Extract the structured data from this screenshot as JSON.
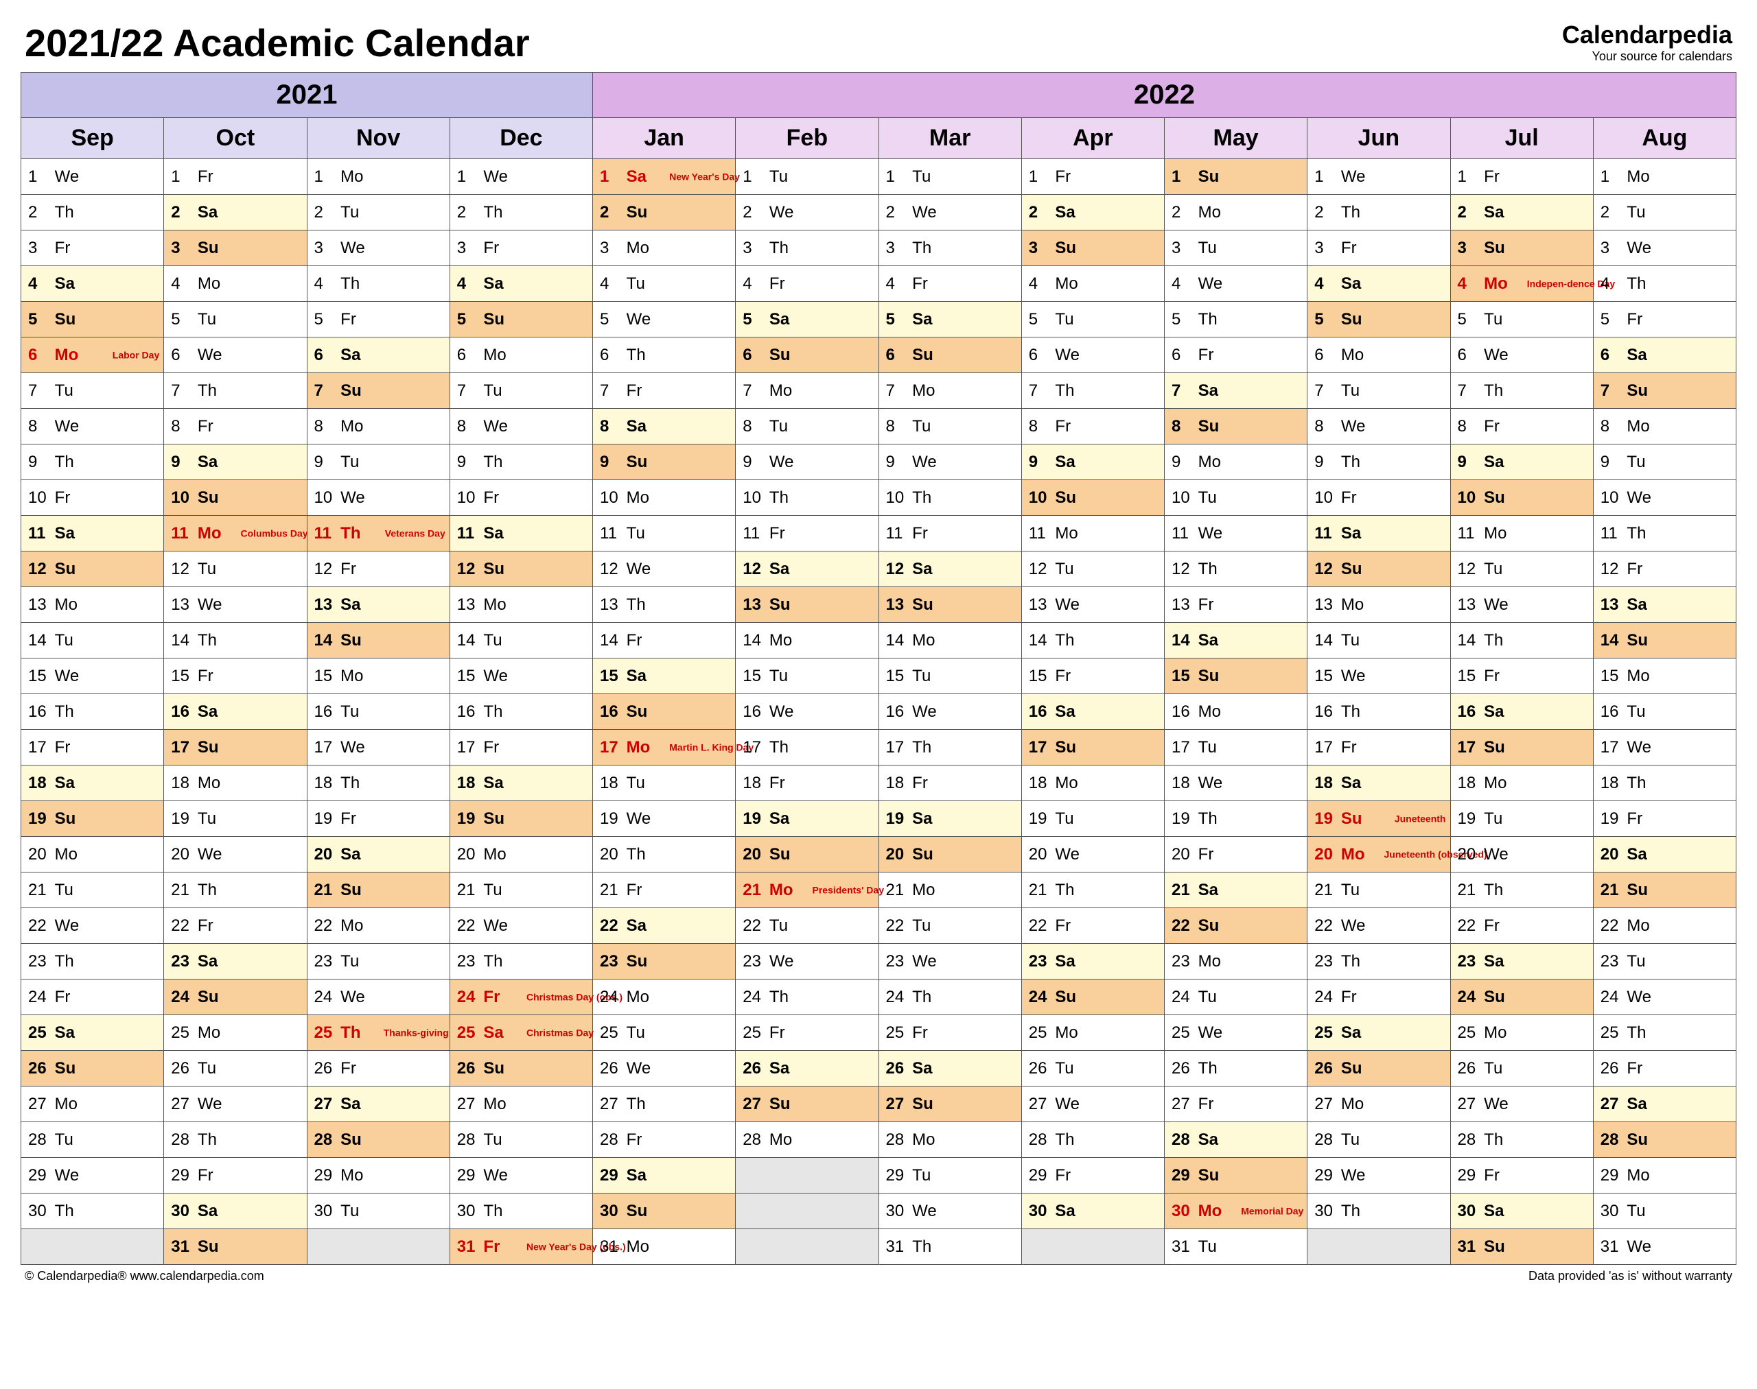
{
  "title": "2021/22 Academic Calendar",
  "brand": {
    "name": "Calendarpedia",
    "sub": "Your source for calendars"
  },
  "footer_left": "© Calendarpedia®   www.calendarpedia.com",
  "footer_right": "Data provided 'as is' without warranty",
  "colors": {
    "year2021_bg": "#c5c0ea",
    "year2022_bg": "#dcb0e6",
    "month2021_bg": "#dedaf4",
    "month2022_bg": "#eed7f3",
    "sat_bg": "#fef9d6",
    "sun_bg": "#f9cf9c",
    "holiday_bg": "#f9cf9c",
    "holiday_text": "#cc0000",
    "blank_bg": "#e6e6e6",
    "border": "#555555",
    "title_fontsize_pt": 42,
    "year_fontsize_pt": 30,
    "month_fontsize_pt": 26,
    "day_fontsize_pt": 18,
    "holiday_label_fontsize_pt": 11
  },
  "year_groups": [
    {
      "label": "2021",
      "span": 4,
      "class": "year-2021",
      "mclass": "mon-2021"
    },
    {
      "label": "2022",
      "span": 8,
      "class": "year-2022",
      "mclass": "mon-2022"
    }
  ],
  "months": [
    {
      "abbr": "Sep",
      "year": 2021,
      "days": 30,
      "start": 3
    },
    {
      "abbr": "Oct",
      "year": 2021,
      "days": 31,
      "start": 5
    },
    {
      "abbr": "Nov",
      "year": 2021,
      "days": 30,
      "start": 1
    },
    {
      "abbr": "Dec",
      "year": 2021,
      "days": 31,
      "start": 3
    },
    {
      "abbr": "Jan",
      "year": 2022,
      "days": 31,
      "start": 6
    },
    {
      "abbr": "Feb",
      "year": 2022,
      "days": 28,
      "start": 2
    },
    {
      "abbr": "Mar",
      "year": 2022,
      "days": 31,
      "start": 2
    },
    {
      "abbr": "Apr",
      "year": 2022,
      "days": 30,
      "start": 5
    },
    {
      "abbr": "May",
      "year": 2022,
      "days": 31,
      "start": 0
    },
    {
      "abbr": "Jun",
      "year": 2022,
      "days": 30,
      "start": 3
    },
    {
      "abbr": "Jul",
      "year": 2022,
      "days": 31,
      "start": 5
    },
    {
      "abbr": "Aug",
      "year": 2022,
      "days": 31,
      "start": 1
    }
  ],
  "dow": [
    "Su",
    "Mo",
    "Tu",
    "We",
    "Th",
    "Fr",
    "Sa"
  ],
  "holidays": {
    "Sep-6": "Labor Day",
    "Oct-11": "Columbus Day",
    "Nov-11": "Veterans Day",
    "Nov-25": "Thanks-giving Day",
    "Dec-24": "Christmas Day (obs.)",
    "Dec-25": "Christmas Day",
    "Dec-31": "New Year's Day (obs.)",
    "Jan-1": "New Year's Day",
    "Jan-17": "Martin L. King Day",
    "Feb-21": "Presidents' Day",
    "May-30": "Memorial Day",
    "Jun-19": "Juneteenth",
    "Jun-20": "Juneteenth (observed)",
    "Jul-4": "Indepen-dence Day"
  }
}
